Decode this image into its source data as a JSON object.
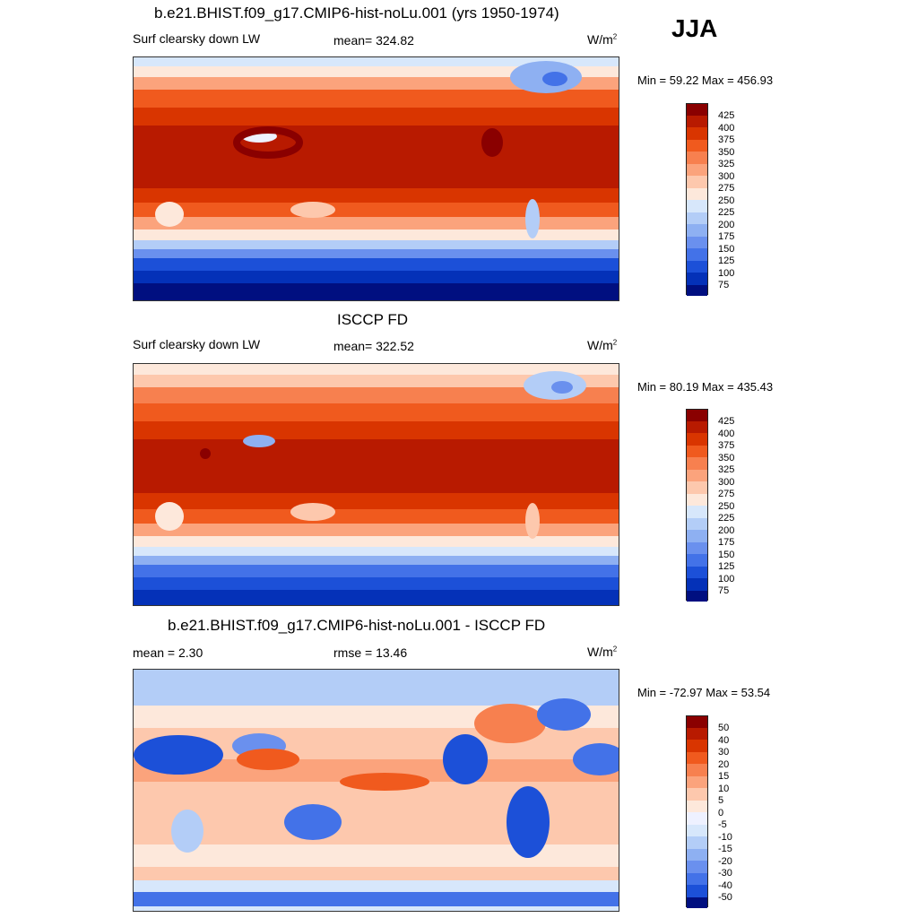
{
  "season": "JJA",
  "panels": [
    {
      "title": "b.e21.BHIST.f09_g17.CMIP6-hist-noLu.001 (yrs 1950-1974)",
      "left_label": "Surf clearsky down LW",
      "center_label": "mean= 324.82",
      "units": "W/m",
      "units_sup": "2",
      "minmax": "Min =  59.22 Max = 456.93",
      "colorbar_ticks": [
        "425",
        "400",
        "375",
        "350",
        "325",
        "300",
        "275",
        "250",
        "225",
        "200",
        "175",
        "150",
        "125",
        "100",
        "75"
      ]
    },
    {
      "title": "ISCCP FD",
      "left_label": "Surf clearsky down LW",
      "center_label": "mean= 322.52",
      "units": "W/m",
      "units_sup": "2",
      "minmax": "Min =  80.19 Max = 435.43",
      "colorbar_ticks": [
        "425",
        "400",
        "375",
        "350",
        "325",
        "300",
        "275",
        "250",
        "225",
        "200",
        "175",
        "150",
        "125",
        "100",
        "75"
      ]
    },
    {
      "title": "b.e21.BHIST.f09_g17.CMIP6-hist-noLu.001 - ISCCP FD",
      "left_label": "mean =   2.30",
      "center_label": "rmse =  13.46",
      "units": "W/m",
      "units_sup": "2",
      "minmax": "Min = -72.97 Max =  53.54",
      "colorbar_ticks": [
        "50",
        "40",
        "30",
        "20",
        "15",
        "10",
        "5",
        "0",
        "-5",
        "-10",
        "-15",
        "-20",
        "-30",
        "-40",
        "-50"
      ]
    }
  ],
  "colors": {
    "absolute_scale": [
      "#8a0000",
      "#b81a00",
      "#d93500",
      "#f05a1e",
      "#f7804f",
      "#fba37c",
      "#fdc8ad",
      "#fde8db",
      "#d7e7fb",
      "#b3cdf7",
      "#8eb0f2",
      "#6a90ee",
      "#4372e8",
      "#1c50d8",
      "#0431b8",
      "#000f80"
    ],
    "difference_scale": [
      "#8a0000",
      "#b81a00",
      "#d93500",
      "#f05a1e",
      "#f7804f",
      "#fba37c",
      "#fdc8ad",
      "#fde8db",
      "#eef1ff",
      "#d7e7fb",
      "#b3cdf7",
      "#8eb0f2",
      "#6a90ee",
      "#4372e8",
      "#1c50d8",
      "#000f80"
    ]
  }
}
